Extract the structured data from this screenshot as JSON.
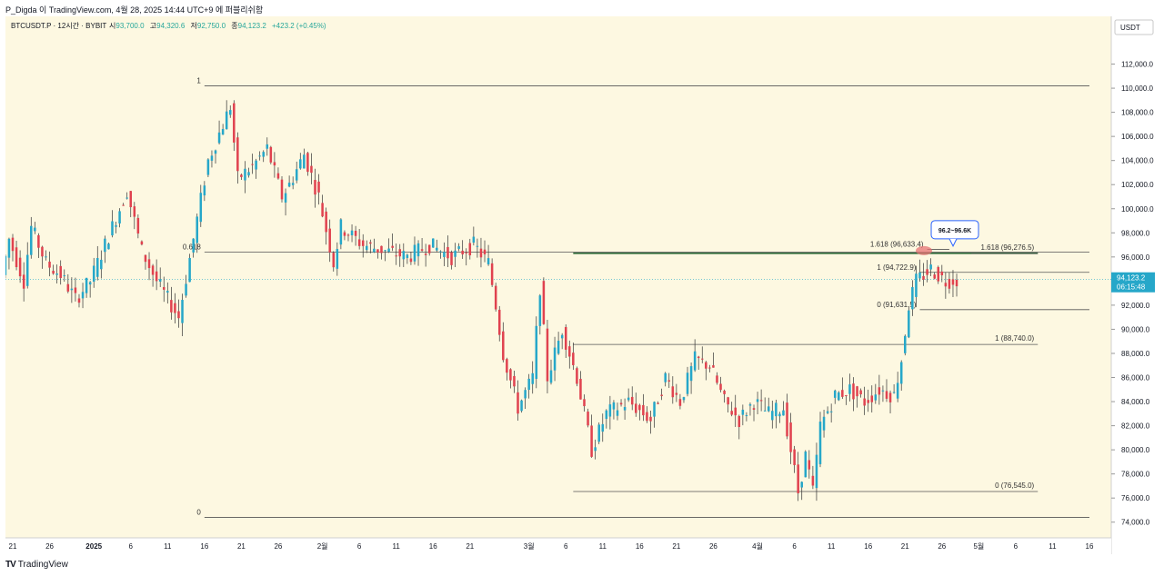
{
  "header": {
    "caption": "P_Digda 이 TradingView.com, 4월 28, 2025 14:44 UTC+9 에 퍼블리쉬함"
  },
  "footer": {
    "logo_mark": "TV",
    "brand": "TradingView"
  },
  "colors": {
    "background": "#fdf8e1",
    "up": "#26a7c9",
    "down": "#e0424f",
    "fib_line": "#555555",
    "green_line": "#2e6b3a",
    "price_badge": "#26a7c9",
    "callout_border": "#2962ff"
  },
  "chart_data": {
    "type": "candlestick",
    "symbol_line": {
      "symbol": "BTCUSDT.P · 12시간 · BYBIT",
      "open_label": "시",
      "open": "93,700.0",
      "high_label": "고",
      "high": "94,320.6",
      "low_label": "저",
      "low": "92,750.0",
      "close_label": "종",
      "close": "94,123.2",
      "change": "+423.2 (+0.45%)"
    },
    "currency": "USDT",
    "y_axis": {
      "ylim": [
        73000,
        114000
      ],
      "ticks": [
        74000,
        76000,
        78000,
        80000,
        82000,
        84000,
        86000,
        88000,
        90000,
        92000,
        94000,
        96000,
        98000,
        100000,
        102000,
        104000,
        106000,
        108000,
        110000,
        112000
      ],
      "tick_labels": [
        "74,000.0",
        "76,000.0",
        "78,000.0",
        "80,000.0",
        "82,000.0",
        "84,000.0",
        "86,000.0",
        "88,000.0",
        "90,000.0",
        "92,000.0",
        "94,000.0",
        "96,000.0",
        "98,000.0",
        "100,000.0",
        "102,000.0",
        "104,000.0",
        "106,000.0",
        "108,000.0",
        "110,000.0",
        "112,000.0"
      ]
    },
    "x_axis": {
      "start_date": "2024-12-21",
      "end_date": "2025-05-16",
      "labels": [
        {
          "date": "2024-12-21",
          "text": "21"
        },
        {
          "date": "2024-12-26",
          "text": "26"
        },
        {
          "date": "2025-01-01",
          "text": "2025"
        },
        {
          "date": "2025-01-06",
          "text": "6"
        },
        {
          "date": "2025-01-11",
          "text": "11"
        },
        {
          "date": "2025-01-16",
          "text": "16"
        },
        {
          "date": "2025-01-21",
          "text": "21"
        },
        {
          "date": "2025-01-26",
          "text": "26"
        },
        {
          "date": "2025-02-01",
          "text": "2월"
        },
        {
          "date": "2025-02-06",
          "text": "6"
        },
        {
          "date": "2025-02-11",
          "text": "11"
        },
        {
          "date": "2025-02-16",
          "text": "16"
        },
        {
          "date": "2025-02-21",
          "text": "21"
        },
        {
          "date": "2025-03-01",
          "text": "3월"
        },
        {
          "date": "2025-03-06",
          "text": "6"
        },
        {
          "date": "2025-03-11",
          "text": "11"
        },
        {
          "date": "2025-03-16",
          "text": "16"
        },
        {
          "date": "2025-03-21",
          "text": "21"
        },
        {
          "date": "2025-03-26",
          "text": "26"
        },
        {
          "date": "2025-04-01",
          "text": "4월"
        },
        {
          "date": "2025-04-06",
          "text": "6"
        },
        {
          "date": "2025-04-11",
          "text": "11"
        },
        {
          "date": "2025-04-16",
          "text": "16"
        },
        {
          "date": "2025-04-21",
          "text": "21"
        },
        {
          "date": "2025-04-26",
          "text": "26"
        },
        {
          "date": "2025-05-01",
          "text": "5월"
        },
        {
          "date": "2025-05-06",
          "text": "6"
        },
        {
          "date": "2025-05-11",
          "text": "11"
        },
        {
          "date": "2025-05-16",
          "text": "16"
        }
      ]
    },
    "last_price": {
      "value": 94123.2,
      "label": "94,123.2",
      "countdown": "06:15:48"
    },
    "dotted_price_line": 94123.2,
    "path_points": [
      [
        "2024-12-20",
        94500
      ],
      [
        "2024-12-21",
        97500
      ],
      [
        "2024-12-23",
        94000
      ],
      [
        "2024-12-24",
        98500
      ],
      [
        "2024-12-26",
        95500
      ],
      [
        "2024-12-28",
        94500
      ],
      [
        "2024-12-30",
        92500
      ],
      [
        "2025-01-01",
        94000
      ],
      [
        "2025-01-03",
        97000
      ],
      [
        "2025-01-06",
        101500
      ],
      [
        "2025-01-08",
        96500
      ],
      [
        "2025-01-10",
        94000
      ],
      [
        "2025-01-13",
        91000
      ],
      [
        "2025-01-15",
        97500
      ],
      [
        "2025-01-17",
        104000
      ],
      [
        "2025-01-20",
        108500
      ],
      [
        "2025-01-21",
        102500
      ],
      [
        "2025-01-23",
        103500
      ],
      [
        "2025-01-25",
        105000
      ],
      [
        "2025-01-27",
        101000
      ],
      [
        "2025-01-28",
        102000
      ],
      [
        "2025-01-30",
        104500
      ],
      [
        "2025-02-01",
        101000
      ],
      [
        "2025-02-03",
        95500
      ],
      [
        "2025-02-04",
        98500
      ],
      [
        "2025-02-07",
        97000
      ],
      [
        "2025-02-10",
        96500
      ],
      [
        "2025-02-13",
        96000
      ],
      [
        "2025-02-16",
        97000
      ],
      [
        "2025-02-19",
        96000
      ],
      [
        "2025-02-22",
        97000
      ],
      [
        "2025-02-24",
        95500
      ],
      [
        "2025-02-25",
        92000
      ],
      [
        "2025-02-26",
        88000
      ],
      [
        "2025-02-28",
        83500
      ],
      [
        "2025-03-02",
        86000
      ],
      [
        "2025-03-03",
        93500
      ],
      [
        "2025-03-04",
        86000
      ],
      [
        "2025-03-06",
        90000
      ],
      [
        "2025-03-08",
        86000
      ],
      [
        "2025-03-09",
        83000
      ],
      [
        "2025-03-10",
        80000
      ],
      [
        "2025-03-12",
        83000
      ],
      [
        "2025-03-15",
        84000
      ],
      [
        "2025-03-18",
        82500
      ],
      [
        "2025-03-20",
        86000
      ],
      [
        "2025-03-22",
        84000
      ],
      [
        "2025-03-24",
        87500
      ],
      [
        "2025-03-26",
        87000
      ],
      [
        "2025-03-28",
        84000
      ],
      [
        "2025-03-30",
        82500
      ],
      [
        "2025-04-01",
        84000
      ],
      [
        "2025-04-03",
        83000
      ],
      [
        "2025-04-05",
        83500
      ],
      [
        "2025-04-07",
        76500
      ],
      [
        "2025-04-08",
        79500
      ],
      [
        "2025-04-09",
        76500
      ],
      [
        "2025-04-10",
        82000
      ],
      [
        "2025-04-12",
        84500
      ],
      [
        "2025-04-14",
        85000
      ],
      [
        "2025-04-16",
        84000
      ],
      [
        "2025-04-18",
        85000
      ],
      [
        "2025-04-20",
        84500
      ],
      [
        "2025-04-21",
        87500
      ],
      [
        "2025-04-22",
        92000
      ],
      [
        "2025-04-23",
        94000
      ],
      [
        "2025-04-25",
        95000
      ],
      [
        "2025-04-27",
        94000
      ],
      [
        "2025-04-28",
        94123
      ]
    ],
    "horizontal_lines": [
      {
        "id": "fib1-top",
        "from": "2025-01-16",
        "to": "2025-05-16",
        "price": 110200,
        "label": "1",
        "label_side": "left"
      },
      {
        "id": "fib0618",
        "from": "2025-01-16",
        "to": "2025-05-16",
        "price": 96400,
        "label": "0.618",
        "label_side": "left"
      },
      {
        "id": "fib0-bottom",
        "from": "2025-01-16",
        "to": "2025-05-16",
        "price": 74400,
        "label": "0",
        "label_side": "left"
      },
      {
        "id": "fib1-mid",
        "from": "2025-03-07",
        "to": "2025-05-09",
        "price": 88740,
        "label": "1 (88,740.0)",
        "label_side": "right"
      },
      {
        "id": "fib0-mid",
        "from": "2025-03-07",
        "to": "2025-05-09",
        "price": 76545,
        "label": "0 (76,545.0)",
        "label_side": "right"
      },
      {
        "id": "fib1618-mid",
        "from": "2025-04-30",
        "to": "2025-05-09",
        "price": 96276.5,
        "label": "1.618 (96,276.5)",
        "label_side": "right"
      },
      {
        "id": "fib1-small",
        "from": "2025-04-23",
        "to": "2025-05-16",
        "price": 94722.9,
        "label": "1 (94,722.9)",
        "label_side": "left"
      },
      {
        "id": "fib0-small",
        "from": "2025-04-23",
        "to": "2025-05-16",
        "price": 91631.5,
        "label": "0 (91,631.5)",
        "label_side": "left"
      },
      {
        "id": "fib1618-small",
        "from": "2025-04-24",
        "to": "2025-04-27",
        "price": 96633.4,
        "label": "1.618 (96,633.4)",
        "label_side": "left"
      }
    ],
    "green_zone": {
      "from": "2025-03-07",
      "to": "2025-05-09",
      "price": 96300
    },
    "callout": {
      "text": "96.2~96.6K",
      "date": "2025-04-28",
      "price": 96450
    }
  }
}
